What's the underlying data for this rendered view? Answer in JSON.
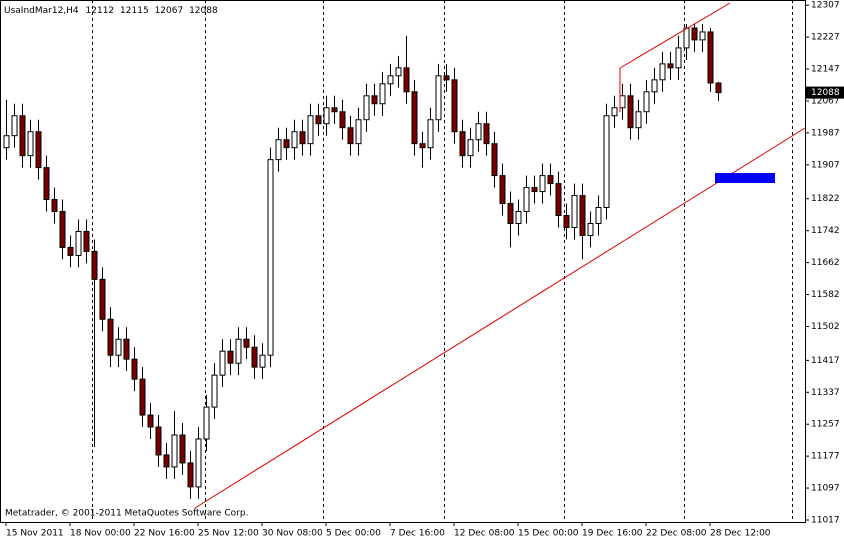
{
  "chart_data": {
    "type": "candlestick",
    "symbol": "UsaIndMar12,H4",
    "footer": "Metatrader, © 2001-2011 MetaQuotes Software Corp.",
    "bull_color": "#ffffff",
    "bear_color": "#7a0000",
    "outline_color": "#000000",
    "categories": [
      "15 Nov 2011",
      null,
      null,
      null,
      null,
      null,
      null,
      null,
      "18 Nov 00:00",
      null,
      null,
      null,
      null,
      null,
      null,
      null,
      "22 Nov 16:00",
      null,
      null,
      null,
      null,
      null,
      null,
      null,
      "25 Nov 12:00",
      null,
      null,
      null,
      null,
      null,
      null,
      null,
      "30 Nov 08:00",
      null,
      null,
      null,
      null,
      null,
      null,
      null,
      "5 Dec 00:00",
      null,
      null,
      null,
      null,
      null,
      null,
      null,
      "7 Dec 16:00",
      null,
      null,
      null,
      null,
      null,
      null,
      null,
      "12 Dec 08:00",
      null,
      null,
      null,
      null,
      null,
      null,
      null,
      "15 Dec 00:00",
      null,
      null,
      null,
      null,
      null,
      null,
      null,
      "19 Dec 16:00",
      null,
      null,
      null,
      null,
      null,
      null,
      null,
      "22 Dec 08:00",
      null,
      null,
      null,
      null,
      null,
      null,
      null,
      "28 Dec 12:00",
      null
    ],
    "open": [
      11950,
      11980,
      12030,
      11930,
      11990,
      11900,
      11820,
      11790,
      11700,
      11680,
      11740,
      11690,
      11620,
      11520,
      11430,
      11470,
      11420,
      11370,
      11280,
      11250,
      11180,
      11150,
      11230,
      11160,
      11100,
      11220,
      11300,
      11380,
      11440,
      11410,
      11470,
      11450,
      11400,
      11430,
      11920,
      11970,
      11950,
      11990,
      11960,
      12030,
      12010,
      12050,
      12040,
      12000,
      11960,
      12020,
      12080,
      12060,
      12110,
      12130,
      12150,
      12090,
      11960,
      11950,
      12020,
      12130,
      12120,
      11990,
      11930,
      11970,
      12010,
      11960,
      11880,
      11810,
      11760,
      11790,
      11850,
      11840,
      11880,
      11860,
      11780,
      11750,
      11830,
      11730,
      11760,
      11800,
      12030,
      12050,
      12080,
      12000,
      12040,
      12090,
      12120,
      12160,
      12150,
      12200,
      12250,
      12220,
      12240,
      12112
    ],
    "high": [
      12070,
      12060,
      12060,
      12020,
      12020,
      11930,
      11850,
      11820,
      11730,
      11770,
      11770,
      11720,
      11650,
      11550,
      11500,
      11500,
      11450,
      11400,
      11310,
      11280,
      11210,
      11290,
      11260,
      11190,
      11250,
      11330,
      11410,
      11470,
      11470,
      11500,
      11500,
      11480,
      11460,
      11950,
      12000,
      12000,
      12020,
      12020,
      12060,
      12060,
      12080,
      12080,
      12070,
      12030,
      12050,
      12110,
      12110,
      12140,
      12160,
      12180,
      12230,
      12120,
      11990,
      12050,
      12160,
      12160,
      12150,
      12020,
      12000,
      12040,
      12040,
      11990,
      11910,
      11840,
      11820,
      11880,
      11880,
      11910,
      11910,
      11890,
      11810,
      11860,
      11860,
      11790,
      11830,
      12060,
      12080,
      12110,
      12110,
      12070,
      12120,
      12150,
      12190,
      12190,
      12230,
      12260,
      12260,
      12260,
      12250,
      12115
    ],
    "low": [
      11920,
      11950,
      11900,
      11900,
      11870,
      11790,
      11760,
      11670,
      11650,
      11650,
      11660,
      11200,
      11490,
      11400,
      11400,
      11390,
      11340,
      11250,
      11220,
      11150,
      11120,
      11120,
      11130,
      11070,
      11070,
      11190,
      11270,
      11350,
      11380,
      11380,
      11420,
      11370,
      11370,
      11400,
      11890,
      11920,
      11920,
      11930,
      11930,
      11980,
      11980,
      12010,
      11970,
      11930,
      11930,
      11990,
      12030,
      12030,
      12080,
      12100,
      12060,
      11930,
      11900,
      11920,
      11990,
      12090,
      11960,
      11900,
      11900,
      11940,
      11930,
      11850,
      11780,
      11700,
      11730,
      11760,
      11810,
      11810,
      11830,
      11750,
      11720,
      11720,
      11670,
      11700,
      11730,
      11770,
      12000,
      12020,
      11970,
      11970,
      12010,
      12060,
      12090,
      12120,
      12120,
      12170,
      12190,
      12190,
      12090,
      12067
    ],
    "close": [
      11980,
      12030,
      11930,
      11990,
      11900,
      11820,
      11790,
      11700,
      11680,
      11740,
      11690,
      11620,
      11520,
      11430,
      11470,
      11420,
      11370,
      11280,
      11250,
      11180,
      11150,
      11230,
      11160,
      11100,
      11220,
      11300,
      11380,
      11440,
      11410,
      11470,
      11450,
      11400,
      11430,
      11920,
      11970,
      11950,
      11990,
      11960,
      12030,
      12010,
      12050,
      12040,
      12000,
      11960,
      12020,
      12080,
      12060,
      12110,
      12130,
      12150,
      12090,
      11960,
      11950,
      12020,
      12130,
      12120,
      11990,
      11930,
      11970,
      12010,
      11960,
      11880,
      11810,
      11760,
      11790,
      11850,
      11840,
      11880,
      11860,
      11780,
      11750,
      11830,
      11730,
      11760,
      11800,
      12030,
      12050,
      12080,
      12000,
      12040,
      12090,
      12120,
      12160,
      12150,
      12200,
      12250,
      12220,
      12240,
      12112,
      12088
    ],
    "ylim": [
      11012,
      12320
    ],
    "yticks": [
      12307,
      12227,
      12147,
      12067,
      11987,
      11907,
      11822,
      11742,
      11662,
      11582,
      11502,
      11417,
      11337,
      11257,
      11177,
      11097,
      11017
    ]
  }
}
